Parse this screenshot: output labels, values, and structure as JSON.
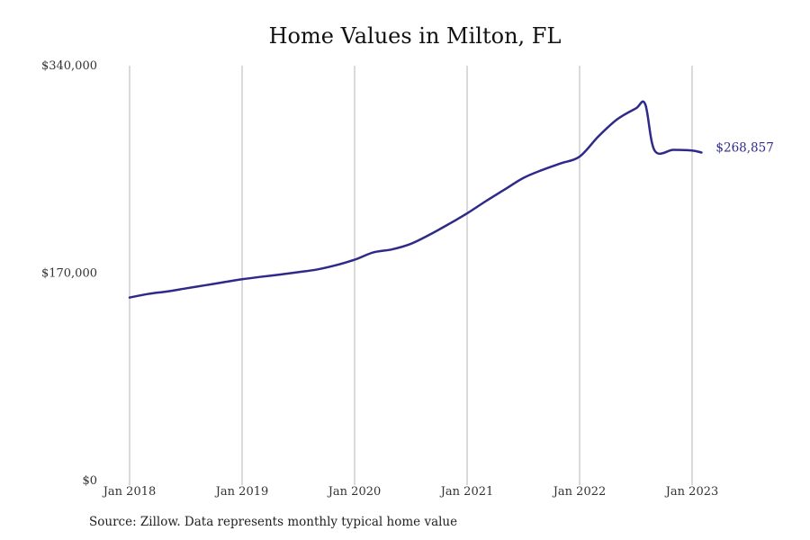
{
  "chart_data": {
    "type": "line",
    "title": "Home Values in Milton, FL",
    "source": "Source: Zillow. Data represents monthly typical home value",
    "y_ticks": [
      {
        "value": 0,
        "label": "$0"
      },
      {
        "value": 170000,
        "label": "$170,000"
      },
      {
        "value": 340000,
        "label": "$340,000"
      }
    ],
    "x_ticks": [
      {
        "value": 2018.0,
        "label": "Jan 2018"
      },
      {
        "value": 2019.0,
        "label": "Jan 2019"
      },
      {
        "value": 2020.0,
        "label": "Jan 2020"
      },
      {
        "value": 2021.0,
        "label": "Jan 2021"
      },
      {
        "value": 2022.0,
        "label": "Jan 2022"
      },
      {
        "value": 2023.0,
        "label": "Jan 2023"
      }
    ],
    "ylim": [
      0,
      340000
    ],
    "xlim": [
      2018.0,
      2023.0
    ],
    "grid": "vertical",
    "line_color": "#2e2a8a",
    "end_label": "$268,857",
    "series": [
      {
        "x": [
          "2018-01",
          "2018-03",
          "2018-05",
          "2018-07",
          "2018-09",
          "2018-11",
          "2019-01",
          "2019-03",
          "2019-05",
          "2019-07",
          "2019-09",
          "2019-11",
          "2020-01",
          "2020-03",
          "2020-05",
          "2020-07",
          "2020-09",
          "2020-11",
          "2021-01",
          "2021-03",
          "2021-05",
          "2021-07",
          "2021-09",
          "2021-11",
          "2022-01",
          "2022-03",
          "2022-05",
          "2022-07",
          "2022-08",
          "2022-09",
          "2022-11",
          "2023-01",
          "2023-02"
        ],
        "values": [
          150000,
          153000,
          155000,
          157500,
          160000,
          162500,
          165000,
          167000,
          168800,
          170800,
          173000,
          176500,
          181000,
          187000,
          189500,
          194000,
          201500,
          210000,
          219000,
          229000,
          238500,
          248000,
          254500,
          260000,
          265500,
          282000,
          296000,
          305000,
          308500,
          270500,
          271000,
          270500,
          268857
        ]
      }
    ]
  }
}
